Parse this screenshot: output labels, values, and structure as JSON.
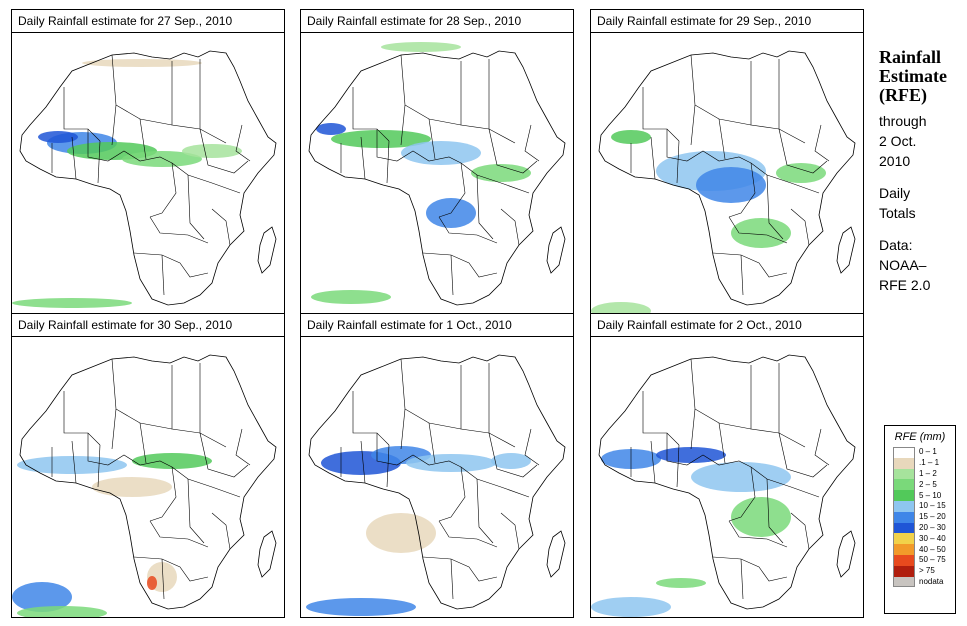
{
  "panels": [
    {
      "title": "Daily Rainfall estimate for  27 Sep., 2010"
    },
    {
      "title": "Daily Rainfall estimate for  28 Sep., 2010"
    },
    {
      "title": "Daily Rainfall estimate for  29 Sep., 2010"
    },
    {
      "title": "Daily Rainfall estimate for  30 Sep., 2010"
    },
    {
      "title": "Daily Rainfall estimate for  1 Oct., 2010"
    },
    {
      "title": "Daily Rainfall estimate for  2 Oct., 2010"
    }
  ],
  "sidebar": {
    "title": "Rainfall Estimate (RFE)",
    "through": "through",
    "date": "2 Oct. 2010",
    "period": "Daily Totals",
    "data_label": "Data:",
    "source": "NOAA–RFE 2.0"
  },
  "legend": {
    "title": "RFE (mm)",
    "items": [
      {
        "label": "0 – 1",
        "color": "#ffffff"
      },
      {
        "label": ".1 – 1",
        "color": "#e8d8bc"
      },
      {
        "label": "1 – 2",
        "color": "#a6e39c"
      },
      {
        "label": "2 – 5",
        "color": "#7ad97a"
      },
      {
        "label": "5 – 10",
        "color": "#52c95a"
      },
      {
        "label": "10 – 15",
        "color": "#8ec6f0"
      },
      {
        "label": "15 – 20",
        "color": "#3f86e8"
      },
      {
        "label": "20 – 30",
        "color": "#1f55d6"
      },
      {
        "label": "30 – 40",
        "color": "#f2d24a"
      },
      {
        "label": "40 – 50",
        "color": "#f29a2a"
      },
      {
        "label": "50 – 75",
        "color": "#e84a1e"
      },
      {
        "label": "> 75",
        "color": "#b01e0e"
      },
      {
        "label": "nodata",
        "color": "#c8c4c0"
      }
    ]
  }
}
